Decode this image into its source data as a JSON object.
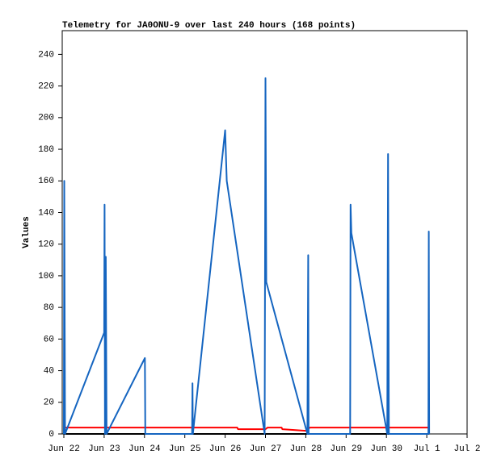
{
  "chart_data": {
    "type": "line",
    "title": "Telemetry for JA0ONU-9 over last 240 hours (168 points)",
    "y_label": "Values",
    "xlim": [
      -0.04,
      10
    ],
    "ylim": [
      0,
      255
    ],
    "xticks": [
      {
        "value": 0,
        "label": "Jun 22"
      },
      {
        "value": 1,
        "label": "Jun 23"
      },
      {
        "value": 2,
        "label": "Jun 24"
      },
      {
        "value": 3,
        "label": "Jun 25"
      },
      {
        "value": 4,
        "label": "Jun 26"
      },
      {
        "value": 5,
        "label": "Jun 27"
      },
      {
        "value": 6,
        "label": "Jun 28"
      },
      {
        "value": 7,
        "label": "Jun 29"
      },
      {
        "value": 8,
        "label": "Jun 30"
      },
      {
        "value": 9,
        "label": "Jul 1"
      },
      {
        "value": 10,
        "label": "Jul 2"
      }
    ],
    "yticks": [
      0,
      20,
      40,
      60,
      80,
      100,
      120,
      140,
      160,
      180,
      200,
      220,
      240
    ],
    "series": [
      {
        "color": "#000000",
        "x": [
          0,
          9.06
        ],
        "values": [
          0,
          0
        ]
      },
      {
        "color": "#ff0000",
        "x": [
          0,
          4.3,
          4.32,
          5.0,
          5.05,
          5.4,
          5.42,
          6.0,
          6.1,
          9.06
        ],
        "values": [
          4,
          4,
          3,
          3,
          4,
          4,
          3,
          2,
          4,
          4
        ]
      },
      {
        "color": "#1565c0",
        "x": [
          0,
          0.01,
          0.03,
          1.0,
          1.01,
          1.02,
          1.04,
          1.06,
          2.01,
          2.02,
          3.18,
          3.19,
          3.2,
          4.0,
          4.04,
          4.98,
          5.0,
          5.02,
          6.04,
          6.06,
          6.07,
          7.1,
          7.11,
          7.13,
          8.02,
          8.04,
          8.06,
          9.04,
          9.05,
          9.06
        ],
        "values": [
          0,
          160,
          0,
          64,
          145,
          0,
          112,
          0,
          48,
          0,
          0,
          32,
          0,
          192,
          160,
          0,
          225,
          96,
          0,
          113,
          0,
          0,
          145,
          127,
          0,
          177,
          0,
          0,
          128,
          0
        ]
      }
    ]
  }
}
